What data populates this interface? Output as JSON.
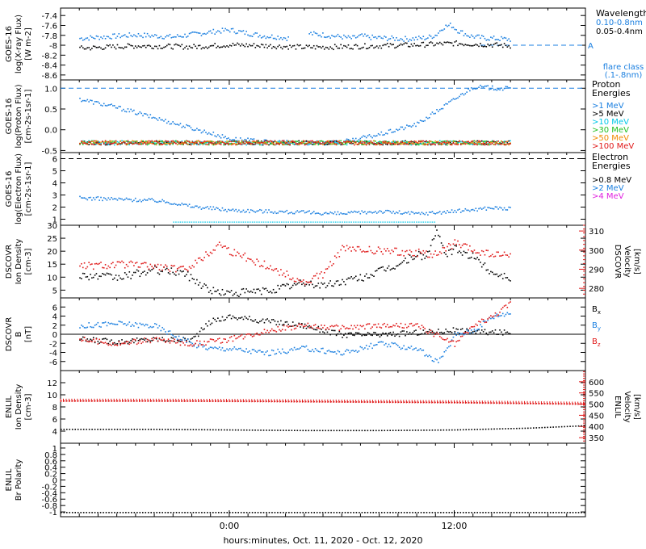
{
  "footer_label": "hours:minutes, Oct. 11, 2020 - Oct. 12, 2020",
  "colors": {
    "black": "#000000",
    "blue": "#1a7fe0",
    "cyan": "#00c8e8",
    "green": "#22c022",
    "orange": "#f08a00",
    "red": "#e01818",
    "magenta": "#e020e0"
  },
  "chart_data": [
    {
      "type": "scatter",
      "id": "xray",
      "left_label": [
        "GOES-16",
        "log(X-ray Flux)",
        "[W m-2]"
      ],
      "ylim": [
        -8.7,
        -7.25
      ],
      "yticks": [
        -7.4,
        -7.6,
        -7.8,
        -8.0,
        -8.2,
        -8.4,
        -8.6
      ],
      "legend_title": "Wavelength",
      "legend": [
        "0.10-0.8nm",
        "0.05-0.4nm"
      ],
      "threshold_label": "A",
      "flare_class_label": [
        "flare class",
        "(.1-.8nm)"
      ],
      "series": [
        {
          "name": "0.10-0.8nm",
          "color": "#1a7fe0",
          "x": [
            -8,
            -5,
            -3,
            -1,
            0,
            1,
            1.8,
            2.6,
            3.2,
            3.6,
            4.2,
            5,
            6,
            6.5,
            7,
            7.5,
            8.5,
            9.5,
            10.5,
            11,
            11.4,
            11.8,
            12.2,
            12.8,
            13.5,
            14.5,
            15
          ],
          "y": [
            -7.85,
            -7.78,
            -7.82,
            -7.72,
            -7.68,
            -7.75,
            -7.8,
            -7.82,
            -7.85,
            null,
            -7.75,
            -7.78,
            -7.82,
            -7.85,
            -7.8,
            -7.83,
            -7.85,
            -7.86,
            -7.84,
            -7.78,
            -7.62,
            -7.58,
            -7.7,
            -7.8,
            -7.84,
            -7.86,
            -7.87
          ]
        },
        {
          "name": "0.05-0.4nm",
          "color": "#000000",
          "x": [
            -8,
            -5,
            -2,
            0,
            2,
            4,
            6,
            8,
            10,
            12,
            14,
            15
          ],
          "y": [
            -8.05,
            -8.0,
            -8.02,
            -7.98,
            -8.0,
            -8.03,
            -8.02,
            -8.0,
            -7.98,
            -7.95,
            -7.98,
            -8.0
          ]
        }
      ]
    },
    {
      "type": "scatter",
      "id": "proton",
      "left_label": [
        "GOES-16",
        "log(Proton Flux)",
        "[cm-2s-1sr-1]"
      ],
      "ylim": [
        -0.55,
        1.2
      ],
      "yticks": [
        1.0,
        0.5,
        0.0,
        -0.5
      ],
      "yticklabels": [
        "1.0",
        "0.5",
        "0.0",
        "-0.5"
      ],
      "legend_title": [
        "Proton",
        "Energies"
      ],
      "legend": [
        ">1 MeV",
        ">5 MeV",
        ">10 MeV",
        ">30 MeV",
        ">50 MeV",
        ">100 MeV"
      ],
      "series": [
        {
          "name": ">1 MeV",
          "color": "#1a7fe0",
          "x": [
            -8,
            -6,
            -4,
            -2,
            0,
            2,
            4,
            6,
            8,
            10,
            11,
            12,
            13,
            14,
            15
          ],
          "y": [
            0.75,
            0.55,
            0.3,
            0.05,
            -0.2,
            -0.28,
            -0.3,
            -0.28,
            -0.1,
            0.15,
            0.45,
            0.75,
            1.05,
            1.02,
            1.0
          ]
        }
      ]
    },
    {
      "type": "scatter",
      "id": "electron",
      "left_label": [
        "GOES-16",
        "log(Electron Flux)",
        "[cm-2s-1sr-1]"
      ],
      "ylim": [
        0.5,
        6.5
      ],
      "yticks": [
        1,
        2,
        3,
        4,
        5,
        6
      ],
      "legend_title": [
        "Electron",
        "Energies"
      ],
      "legend": [
        ">0.8 MeV",
        ">2 MeV",
        ">4 MeV"
      ],
      "series": [
        {
          "name": ">2 MeV",
          "color": "#1a7fe0",
          "x": [
            -8,
            -6,
            -4,
            -3,
            -2,
            0,
            2,
            4,
            6,
            8,
            10,
            12,
            14,
            15
          ],
          "y": [
            2.8,
            2.7,
            2.6,
            2.4,
            2.1,
            1.8,
            1.7,
            1.6,
            1.5,
            1.7,
            1.5,
            1.7,
            2.0,
            1.9
          ]
        }
      ]
    },
    {
      "type": "line",
      "id": "dscovr_density",
      "left_label": [
        "DSCOVR",
        "Ion Density",
        "[cm-3]"
      ],
      "right_label": [
        "DSCOVR",
        "Velocity",
        "[km/s]"
      ],
      "ylim": [
        2,
        30
      ],
      "yticks": [
        5,
        10,
        15,
        20,
        25,
        30
      ],
      "y2lim": [
        275,
        313
      ],
      "y2ticks": [
        280,
        290,
        300,
        310
      ],
      "series": [
        {
          "name": "Ion Density",
          "color": "#000000",
          "x": [
            -8,
            -6,
            -4,
            -2.5,
            -1,
            0,
            2,
            4,
            5,
            7,
            9,
            10,
            10.5,
            11,
            11.5,
            12,
            13,
            14,
            15
          ],
          "y": [
            11,
            10,
            13,
            12,
            5,
            4,
            5,
            8,
            7,
            10,
            15,
            19,
            18,
            28,
            19,
            21,
            18,
            12,
            10
          ]
        },
        {
          "name": "Velocity",
          "color": "#e01818",
          "x": [
            -8,
            -6,
            -4,
            -2.5,
            -1.5,
            -0.5,
            0,
            2,
            4,
            5,
            6,
            8,
            10,
            11,
            12,
            13,
            14,
            15
          ],
          "y": [
            292,
            293,
            292,
            290,
            296,
            304,
            300,
            292,
            283,
            288,
            301,
            300,
            299,
            298,
            304,
            300,
            298,
            297
          ]
        }
      ]
    },
    {
      "type": "line",
      "id": "dscovr_b",
      "left_label": [
        "DSCOVR",
        "B",
        "[nT]"
      ],
      "ylim": [
        -8,
        8
      ],
      "yticks": [
        -6,
        -4,
        -2,
        0,
        2,
        4,
        6
      ],
      "legend": [
        "Bx",
        "By",
        "Bz"
      ],
      "series": [
        {
          "name": "Bx",
          "color": "#000000",
          "x": [
            -8,
            -6,
            -4,
            -2,
            -1,
            0,
            2,
            4,
            6,
            8,
            10,
            12,
            14,
            15
          ],
          "y": [
            -1,
            -1.5,
            -1,
            -1,
            3,
            4,
            3,
            2,
            0,
            0,
            0.5,
            1,
            0.5,
            0.5
          ]
        },
        {
          "name": "By",
          "color": "#1a7fe0",
          "x": [
            -8,
            -6,
            -4,
            -2,
            -1,
            0,
            2,
            4,
            6,
            8,
            10,
            11,
            11.5,
            12,
            13,
            14,
            15
          ],
          "y": [
            2,
            2.5,
            2,
            -2,
            -3,
            -3,
            -4,
            -3,
            -4,
            -2,
            -3,
            -6,
            -4,
            0,
            1,
            4,
            5
          ]
        },
        {
          "name": "Bz",
          "color": "#e01818",
          "x": [
            -8,
            -6,
            -4,
            -2,
            0,
            2,
            4,
            6,
            8,
            10,
            11,
            12,
            13,
            14,
            15
          ],
          "y": [
            -1,
            -2,
            -1,
            -2,
            -1,
            1,
            2,
            1.5,
            2,
            2,
            0,
            -2,
            2,
            4,
            7
          ]
        }
      ]
    },
    {
      "type": "line",
      "id": "enlil_density",
      "left_label": [
        "ENLIL",
        "Ion Density",
        "[cm-3]"
      ],
      "right_label": [
        "ENLIL",
        "Velocity",
        "[km/s]"
      ],
      "ylim": [
        2,
        14
      ],
      "yticks": [
        4,
        6,
        8,
        10,
        12
      ],
      "y2lim": [
        325,
        650
      ],
      "y2ticks": [
        350,
        400,
        450,
        500,
        550,
        600
      ],
      "series": [
        {
          "name": "Ion Density",
          "color": "#000000",
          "x": [
            -9,
            -4,
            0,
            4,
            8,
            12,
            16,
            19
          ],
          "y": [
            4.4,
            4.4,
            4.3,
            4.2,
            4.2,
            4.3,
            4.6,
            5.0
          ]
        },
        {
          "name": "Velocity",
          "color": "#e01818",
          "x": [
            -9,
            -4,
            0,
            4,
            8,
            12,
            16,
            19
          ],
          "y": [
            517,
            517,
            516,
            514,
            512,
            510,
            506,
            503
          ]
        }
      ]
    },
    {
      "type": "line",
      "id": "enlil_polarity",
      "left_label": [
        "ENLIL",
        "Br Polarity"
      ],
      "ylim": [
        -1.15,
        1.15
      ],
      "yticks": [
        -1.0,
        -0.8,
        -0.6,
        -0.4,
        -0.2,
        0.0,
        0.2,
        0.4,
        0.6,
        0.8,
        1.0
      ],
      "series": [
        {
          "name": "Br Polarity",
          "color": "#000000",
          "x": [
            -9,
            19
          ],
          "y": [
            -1.0,
            -1.0
          ]
        }
      ]
    }
  ]
}
